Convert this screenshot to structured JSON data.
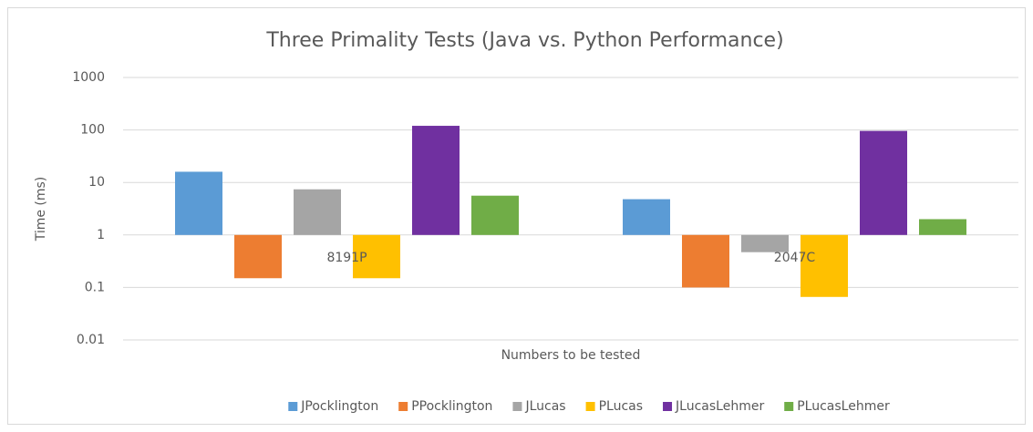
{
  "chart_data": {
    "type": "bar",
    "title": "Three Primality Tests (Java vs. Python Performance)",
    "x_label": "Numbers to be tested",
    "y_label": "Time (ms)",
    "categories": [
      "8191P",
      "2047C"
    ],
    "series": [
      {
        "name": "JPocklington",
        "color": "#5b9bd5",
        "values": [
          16,
          4.8
        ]
      },
      {
        "name": "PPocklington",
        "color": "#ed7d31",
        "values": [
          0.15,
          0.1
        ]
      },
      {
        "name": "JLucas",
        "color": "#a5a5a5",
        "values": [
          7.4,
          0.47
        ]
      },
      {
        "name": "PLucas",
        "color": "#ffc000",
        "values": [
          0.15,
          0.066
        ]
      },
      {
        "name": "JLucasLehmer",
        "color": "#7030a0",
        "values": [
          120,
          96
        ]
      },
      {
        "name": "PLucasLehmer",
        "color": "#70ad47",
        "values": [
          5.6,
          2
        ]
      }
    ],
    "log_scale": true,
    "ylim": [
      0.01,
      1000
    ],
    "yticks": [
      1000,
      100,
      10,
      1,
      0.1,
      0.01
    ],
    "grid": true,
    "legend": "bottom"
  }
}
